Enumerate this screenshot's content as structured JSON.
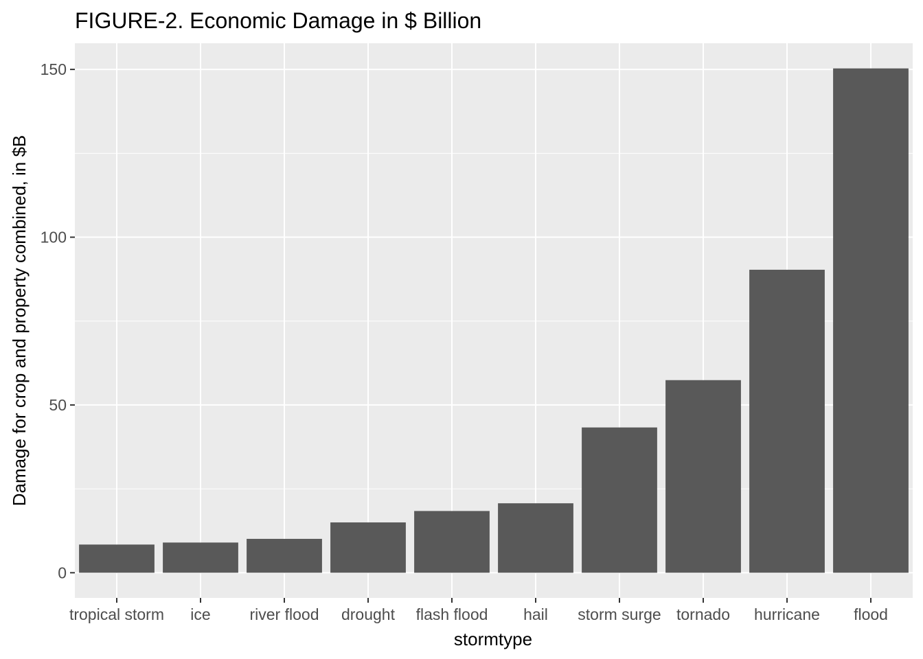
{
  "chart_data": {
    "type": "bar",
    "title": "FIGURE-2. Economic Damage in $ Billion",
    "xlabel": "stormtype",
    "ylabel": "Damage for crop and property combined, in $B",
    "categories": [
      "tropical storm",
      "ice",
      "river flood",
      "drought",
      "flash flood",
      "hail",
      "storm surge",
      "tornado",
      "hurricane",
      "flood"
    ],
    "values": [
      8.4,
      9.0,
      10.1,
      15.0,
      18.4,
      20.7,
      43.3,
      57.4,
      90.3,
      150.3
    ],
    "yticks": [
      0,
      50,
      100,
      150
    ],
    "ylim": [
      -7.5,
      157.8
    ],
    "grid": true,
    "bar_color": "#595959",
    "panel_color": "#ebebeb",
    "grid_color": "#ffffff"
  }
}
